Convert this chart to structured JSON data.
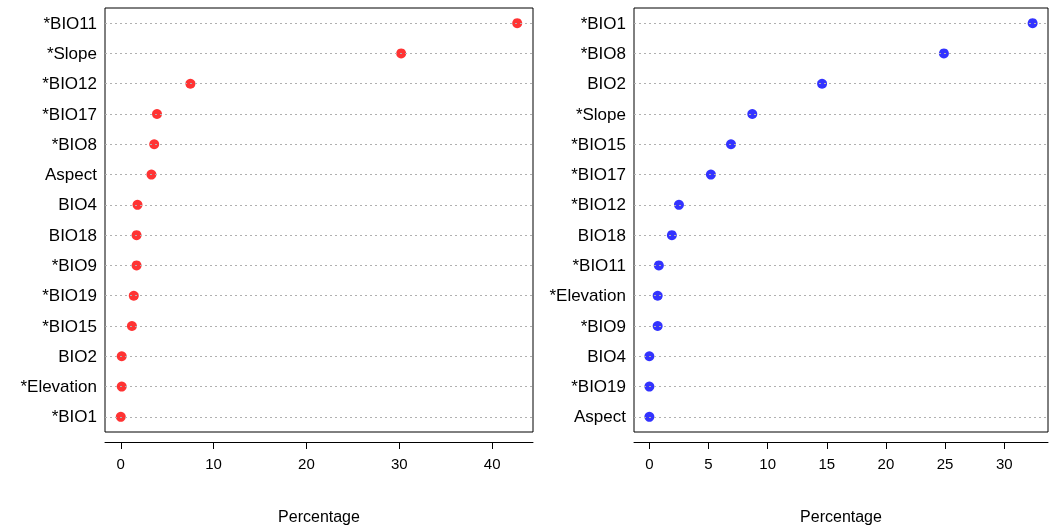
{
  "chart_data": [
    {
      "type": "scatter",
      "orientation": "horizontal",
      "marker": "circle",
      "grid": "y",
      "color": "#ff0000",
      "xlabel": "Percentage",
      "categories": [
        "*BIO11",
        "*Slope",
        "*BIO12",
        "*BIO17",
        "*BIO8",
        "Aspect",
        "BIO4",
        "BIO18",
        "*BIO9",
        "*BIO19",
        "*BIO15",
        "BIO2",
        "*Elevation",
        "*BIO1"
      ],
      "values": [
        42.7,
        30.2,
        7.5,
        3.9,
        3.6,
        3.3,
        1.8,
        1.7,
        1.7,
        1.4,
        1.2,
        0.1,
        0.1,
        0.0
      ],
      "xlim": [
        -1.7,
        44.4
      ],
      "xticks": [
        0,
        10,
        20,
        30,
        40
      ]
    },
    {
      "type": "scatter",
      "orientation": "horizontal",
      "marker": "circle",
      "grid": "y",
      "color": "#0000ff",
      "xlabel": "Percentage",
      "categories": [
        "*BIO1",
        "*BIO8",
        "BIO2",
        "*Slope",
        "*BIO15",
        "*BIO17",
        "*BIO12",
        "BIO18",
        "*BIO11",
        "*Elevation",
        "*BIO9",
        "BIO4",
        "*BIO19",
        "Aspect"
      ],
      "values": [
        32.4,
        24.9,
        14.6,
        8.7,
        6.9,
        5.2,
        2.5,
        1.9,
        0.8,
        0.7,
        0.7,
        0.0,
        0.0,
        0.0
      ],
      "xlim": [
        -1.3,
        33.7
      ],
      "xticks": [
        0,
        5,
        10,
        15,
        20,
        25,
        30
      ]
    }
  ]
}
